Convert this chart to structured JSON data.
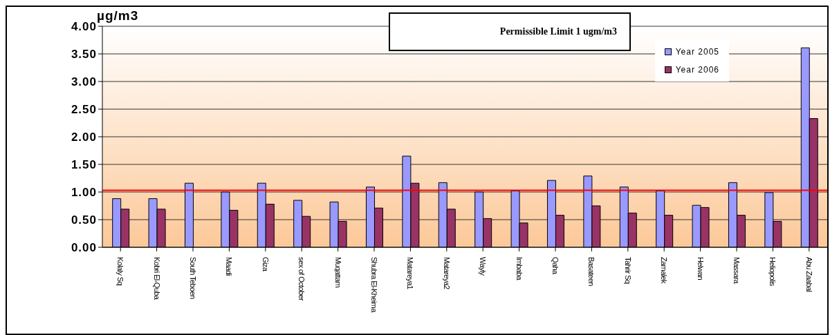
{
  "chart_data": {
    "type": "bar",
    "ylabel": "µg/m3",
    "categories": [
      "Kolaly Sq",
      "Kobri El-Quba",
      "South Teboen",
      "Maadi",
      "Giza",
      "sex of October",
      "Muqattam",
      "Shubra El-Kheima",
      "Matareya1",
      "Matareya2",
      "Wayly",
      "Imbaba",
      "Qaha",
      "Basateen",
      "Tahrir Sq",
      "Zamalek",
      "Helwan",
      "Massara",
      "Heliopolis",
      "Abu Zaabal"
    ],
    "series": [
      {
        "name": "Year 2005",
        "color": "#9999ff",
        "values": [
          0.88,
          0.88,
          1.16,
          1.0,
          1.16,
          0.85,
          0.82,
          1.09,
          1.65,
          1.17,
          1.0,
          1.02,
          1.21,
          1.29,
          1.09,
          1.02,
          0.76,
          1.17,
          0.99,
          3.61
        ]
      },
      {
        "name": "Year 2006",
        "color": "#993366",
        "values": [
          0.69,
          0.69,
          null,
          0.67,
          0.78,
          0.56,
          0.47,
          0.71,
          1.16,
          0.69,
          0.52,
          0.44,
          0.58,
          0.75,
          0.62,
          0.58,
          0.72,
          0.58,
          0.47,
          2.33
        ]
      }
    ],
    "ylim": [
      0,
      4
    ],
    "yticks": [
      {
        "value": 0,
        "label": "0.00"
      },
      {
        "value": 0.5,
        "label": "0.50"
      },
      {
        "value": 1,
        "label": "1.00"
      },
      {
        "value": 1.5,
        "label": "1.50"
      },
      {
        "value": 2,
        "label": "2.00"
      },
      {
        "value": 2.5,
        "label": "2.50"
      },
      {
        "value": 3,
        "label": "3.00"
      },
      {
        "value": 3.5,
        "label": "3.50"
      },
      {
        "value": 4,
        "label": "4.00"
      }
    ],
    "ref_lines": [
      {
        "axis": "y",
        "value": 1.03,
        "color": "#ff0000"
      }
    ],
    "annotations": [
      "Permissible Limit 1 ugm/m3"
    ],
    "grid": "y",
    "legend": "top right"
  }
}
